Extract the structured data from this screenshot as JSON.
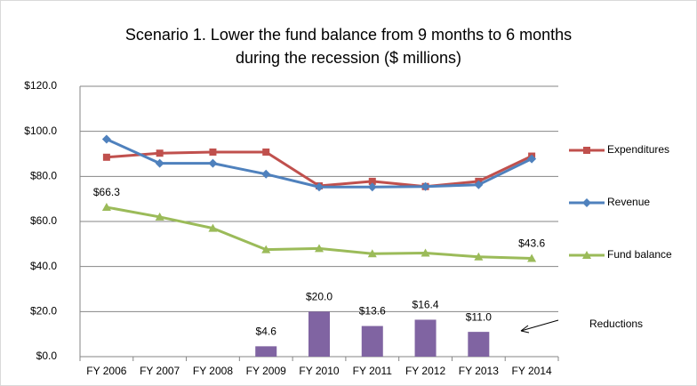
{
  "chart_data": {
    "type": "line",
    "title": [
      "Scenario 1. Lower the fund balance from 9 months to 6 months",
      "during the recession ($ millions)"
    ],
    "categories": [
      "FY 2006",
      "FY 2007",
      "FY 2008",
      "FY 2009",
      "FY 2010",
      "FY 2011",
      "FY 2012",
      "FY 2013",
      "FY 2014"
    ],
    "ylim": [
      0,
      120
    ],
    "yticks": [
      {
        "value": 0,
        "label": "$0.0"
      },
      {
        "value": 20,
        "label": "$20.0"
      },
      {
        "value": 40,
        "label": "$40.0"
      },
      {
        "value": 60,
        "label": "$60.0"
      },
      {
        "value": 80,
        "label": "$80.0"
      },
      {
        "value": 100,
        "label": "$100.0"
      },
      {
        "value": 120,
        "label": "$120.0"
      }
    ],
    "grid": true,
    "series": [
      {
        "name": "Expenditures",
        "color": "#c0504d",
        "marker": "square",
        "values": [
          88.5,
          90.3,
          90.8,
          90.8,
          75.8,
          77.8,
          75.5,
          77.8,
          89.0
        ]
      },
      {
        "name": "Revenue",
        "color": "#4f81bd",
        "marker": "diamond",
        "values": [
          96.5,
          85.8,
          85.8,
          81.0,
          75.3,
          75.3,
          75.5,
          76.3,
          87.8
        ]
      },
      {
        "name": "Fund balance",
        "color": "#9bbb59",
        "marker": "triangle",
        "values": [
          66.3,
          62.0,
          57.0,
          47.5,
          48.0,
          45.7,
          46.0,
          44.3,
          43.6
        ],
        "value_labels": [
          "$66.3",
          null,
          null,
          null,
          null,
          null,
          null,
          null,
          "$43.6"
        ]
      },
      {
        "name": "Reductions",
        "type": "bar",
        "color": "#8064a2",
        "values": [
          null,
          null,
          null,
          4.6,
          20.0,
          13.6,
          16.4,
          11.0,
          null
        ],
        "value_labels": [
          null,
          null,
          null,
          "$4.6",
          "$20.0",
          "$13.6",
          "$16.4",
          "$11.0",
          null
        ]
      }
    ]
  }
}
